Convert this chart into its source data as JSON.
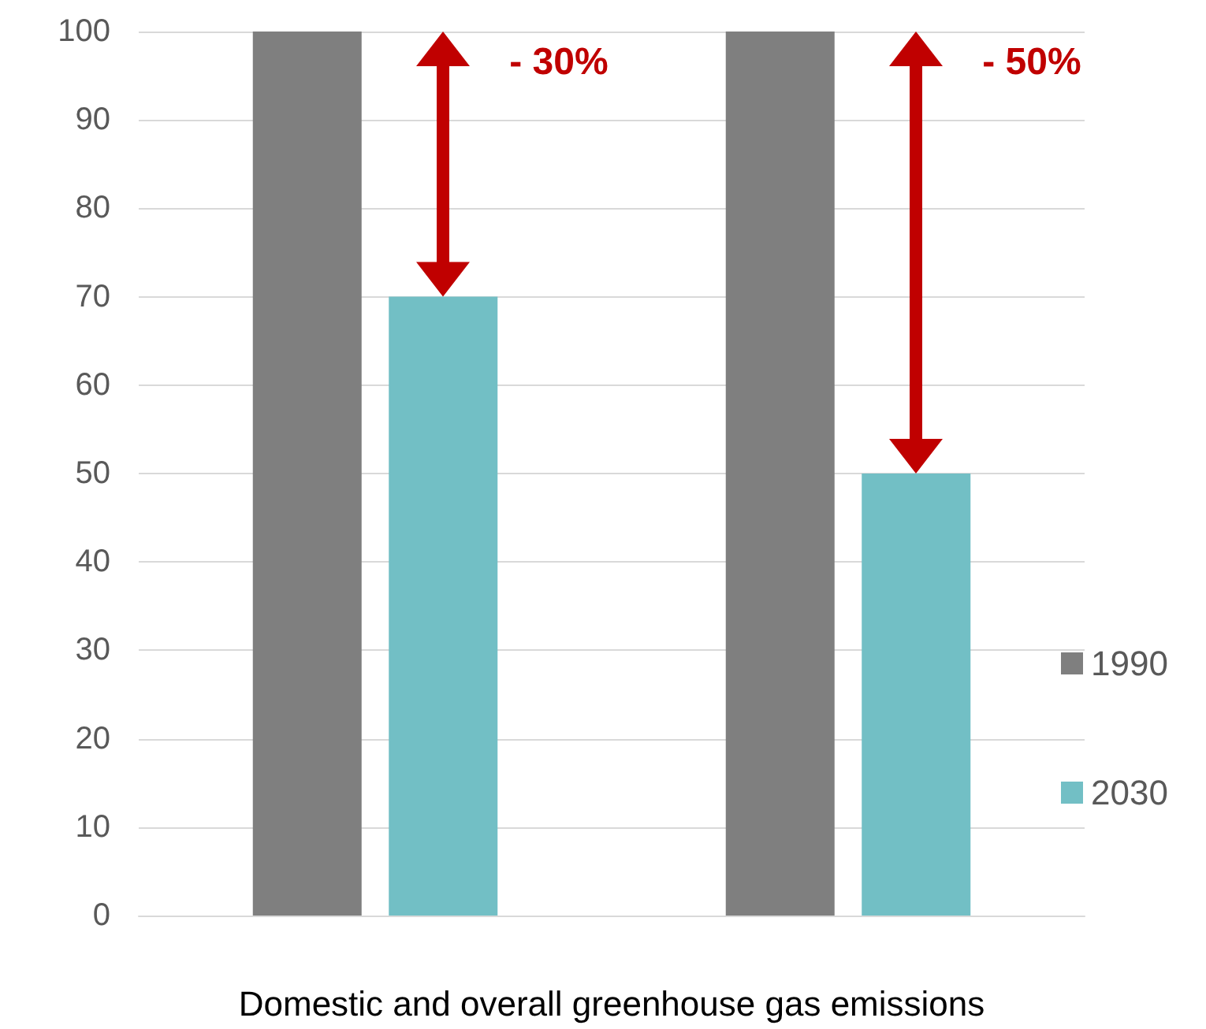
{
  "chart_data": {
    "type": "bar",
    "categories": [
      null,
      null
    ],
    "series": [
      {
        "name": "1990",
        "color": "#7f7f7f",
        "values": [
          100,
          100
        ]
      },
      {
        "name": "2030",
        "color": "#72bfc5",
        "values": [
          70,
          50
        ]
      }
    ],
    "xlabel": "Domestic and overall greenhouse gas emissions",
    "ylim": [
      0,
      100
    ],
    "yticks": [
      0,
      10,
      20,
      30,
      40,
      50,
      60,
      70,
      80,
      90,
      100
    ],
    "grid": "y",
    "legend": "right",
    "annotations": [
      "- 30%",
      "- 50%"
    ]
  }
}
